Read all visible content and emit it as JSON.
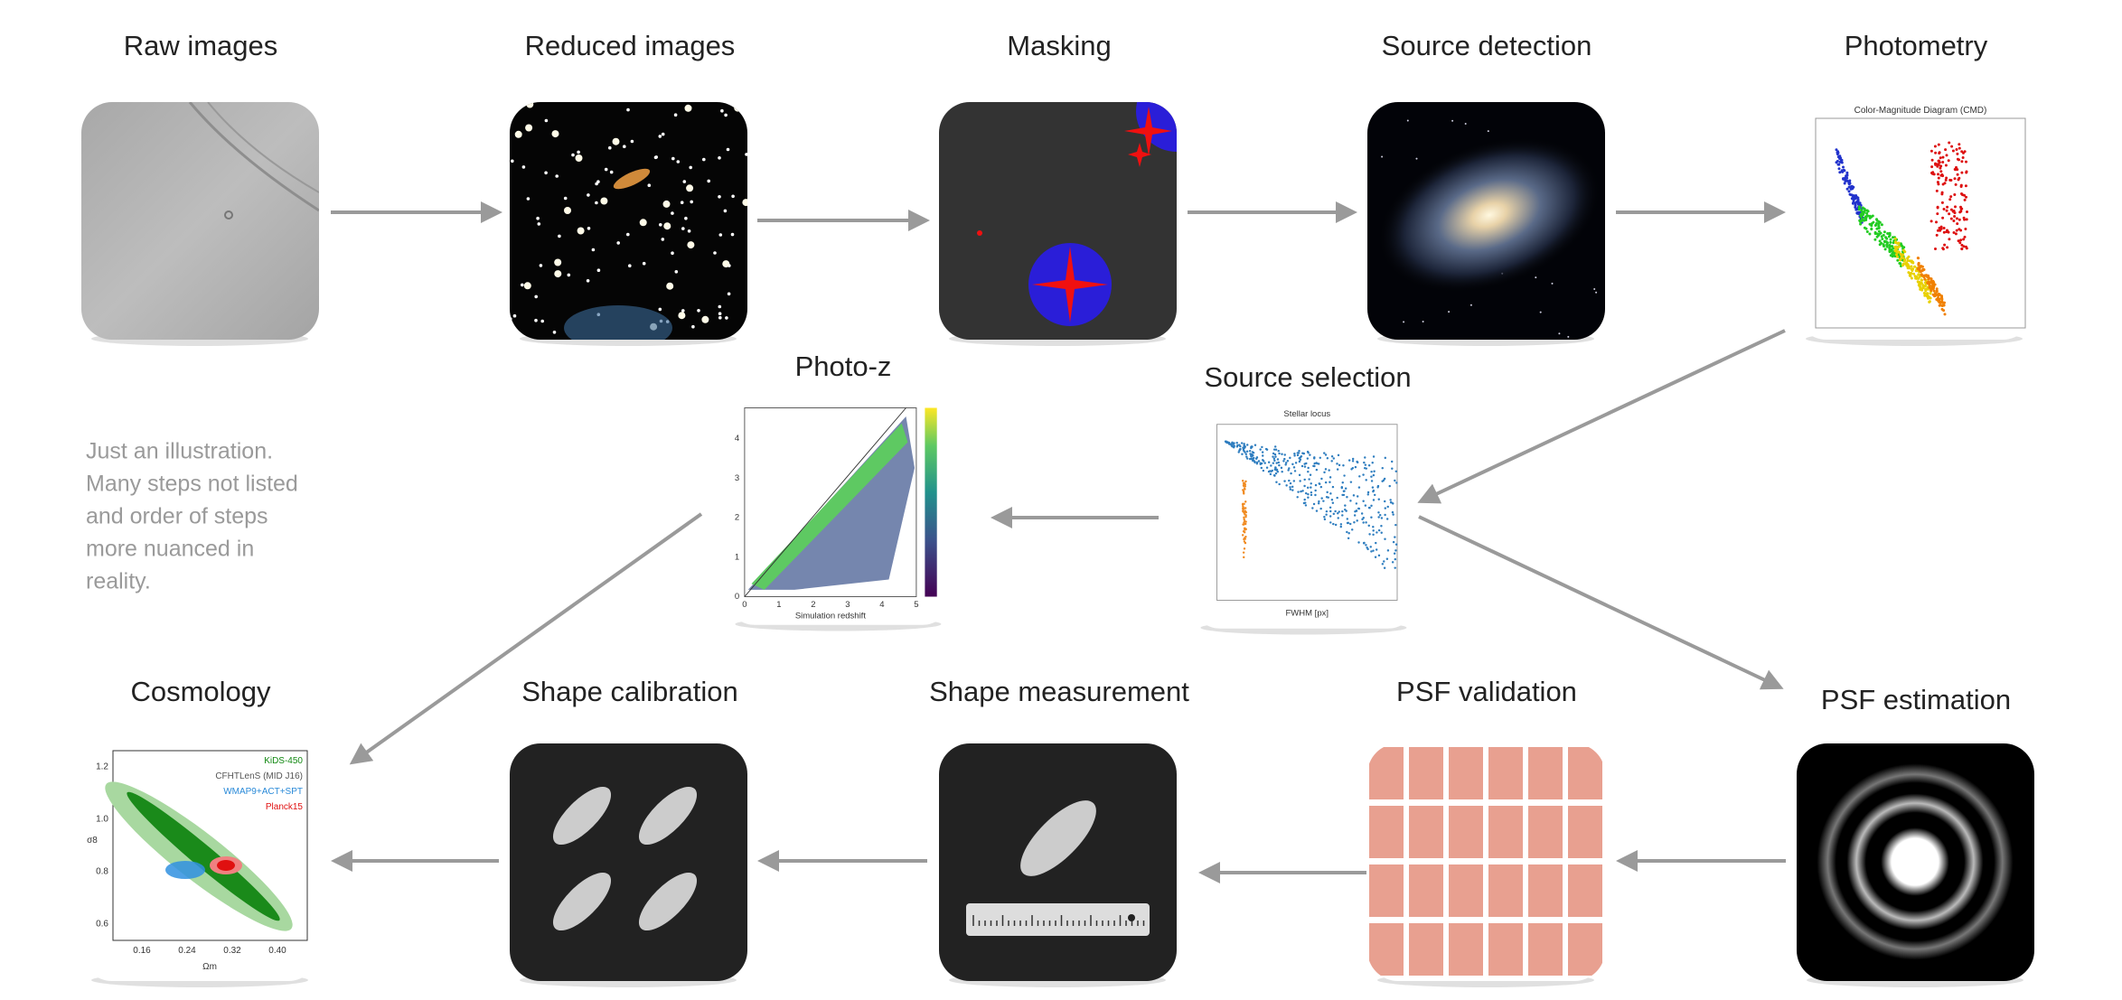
{
  "nodes": [
    {
      "label": "Raw images"
    },
    {
      "label": "Reduced images"
    },
    {
      "label": "Masking"
    },
    {
      "label": "Source detection"
    },
    {
      "label": "Photometry",
      "plot_title": "Color-Magnitude Diagram (CMD)"
    },
    {
      "label": "Source selection",
      "plot_title": "Stellar locus",
      "x_label": "FWHM [px]"
    },
    {
      "label": "Photo-z",
      "x_label": "Simulation redshift",
      "xticks": [
        "0",
        "1",
        "2",
        "3",
        "4",
        "5"
      ],
      "yticks": [
        "0",
        "1",
        "2",
        "3",
        "4"
      ]
    },
    {
      "label": "PSF estimation"
    },
    {
      "label": "PSF validation"
    },
    {
      "label": "Shape measurement"
    },
    {
      "label": "Shape calibration"
    },
    {
      "label": "Cosmology",
      "legend": [
        "KiDS-450",
        "CFHTLenS (MID J16)",
        "WMAP9+ACT+SPT",
        "Planck15"
      ],
      "x_label": "Ωm",
      "y_label": "σ8",
      "xticks": [
        "0.16",
        "0.24",
        "0.32",
        "0.40"
      ],
      "yticks": [
        "0.6",
        "0.8",
        "1.0",
        "1.2"
      ]
    }
  ],
  "note": [
    "Just an illustration.",
    "Many steps not listed",
    "and order of steps",
    "more nuanced in",
    "reality."
  ]
}
